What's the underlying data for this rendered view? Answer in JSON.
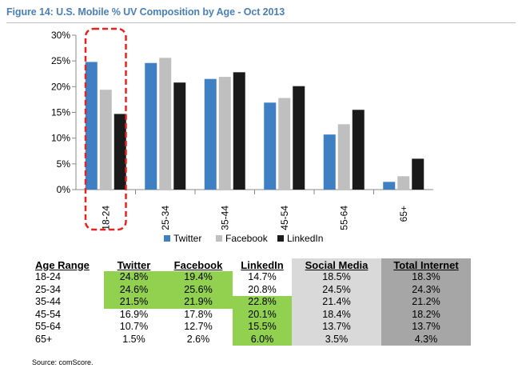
{
  "title": "Figure 14: U.S. Mobile % UV Composition by Age - Oct 2013",
  "colors": {
    "twitter": "#3f7fc4",
    "facebook": "#bfbfbf",
    "linkedin": "#1a1a1a",
    "highlight": "#92d050",
    "dashed_box": "#e8201e"
  },
  "chart_data": {
    "type": "bar",
    "categories": [
      "18-24",
      "25-34",
      "35-44",
      "45-54",
      "55-64",
      "65+"
    ],
    "series": [
      {
        "name": "Twitter",
        "values": [
          24.8,
          24.6,
          21.5,
          16.9,
          10.7,
          1.5
        ]
      },
      {
        "name": "Facebook",
        "values": [
          19.4,
          25.6,
          21.9,
          17.8,
          12.7,
          2.6
        ]
      },
      {
        "name": "LinkedIn",
        "values": [
          14.7,
          20.8,
          22.8,
          20.1,
          15.5,
          6.0
        ]
      }
    ],
    "yticks": [
      "0%",
      "5%",
      "10%",
      "15%",
      "20%",
      "25%",
      "30%"
    ],
    "ylim": [
      0,
      30
    ],
    "legend_position": "bottom",
    "highlighted_category": "18-24",
    "grid": false
  },
  "table": {
    "headers": [
      "Age Range",
      "Twitter",
      "Facebook",
      "LinkedIn",
      "Social Media",
      "Total Internet"
    ],
    "rows": [
      [
        "18-24",
        "24.8%",
        "19.4%",
        "14.7%",
        "18.5%",
        "18.3%"
      ],
      [
        "25-34",
        "24.6%",
        "25.6%",
        "20.8%",
        "24.5%",
        "24.3%"
      ],
      [
        "35-44",
        "21.5%",
        "21.9%",
        "22.8%",
        "21.4%",
        "21.2%"
      ],
      [
        "45-54",
        "16.9%",
        "17.8%",
        "20.1%",
        "18.4%",
        "18.2%"
      ],
      [
        "55-64",
        "10.7%",
        "12.7%",
        "15.5%",
        "13.7%",
        "13.7%"
      ],
      [
        "65+",
        "1.5%",
        "2.6%",
        "6.0%",
        "3.5%",
        "4.3%"
      ]
    ],
    "highlighted_cells": [
      [
        0,
        1
      ],
      [
        0,
        2
      ],
      [
        1,
        1
      ],
      [
        1,
        2
      ],
      [
        2,
        1
      ],
      [
        2,
        2
      ],
      [
        2,
        3
      ],
      [
        3,
        3
      ],
      [
        4,
        3
      ],
      [
        5,
        3
      ]
    ]
  },
  "source": "Source: comScore."
}
